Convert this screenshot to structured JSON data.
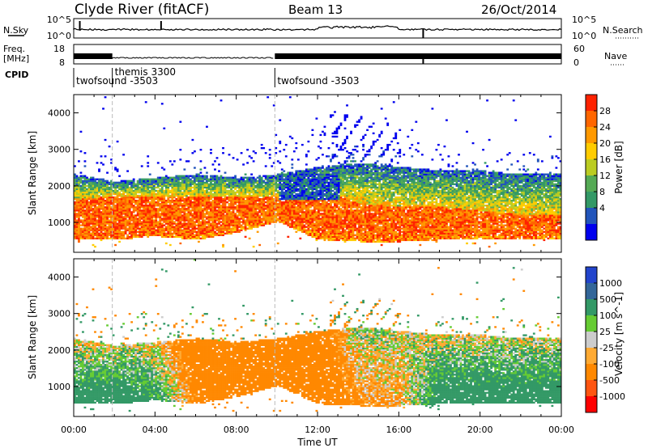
{
  "header": {
    "station": "Clyde River (fitACF)",
    "beam": "Beam 13",
    "date": "26/Oct/2014"
  },
  "status_panels": {
    "nsky_label": "N.Sky",
    "nsky_ticks": [
      "10^5",
      "10^0"
    ],
    "nsearch_label": "N.Search",
    "nsearch_ticks": [
      "10^5",
      "10^0"
    ],
    "freq_label_line1": "Freq.",
    "freq_label_line2": "[MHz]",
    "freq_ticks": [
      "18",
      "8"
    ],
    "nave_label": "Nave",
    "nave_ticks": [
      "60",
      "0"
    ],
    "cpid_label": "CPID",
    "cpid_segments": [
      {
        "name": "twofsound -3503",
        "start_h": 0.0,
        "end_h": 1.9
      },
      {
        "name": "themis 3300",
        "start_h": 1.9,
        "end_h": 9.9
      },
      {
        "name": "twofsound -3503",
        "start_h": 9.9,
        "end_h": 24.0
      }
    ]
  },
  "colors": {
    "power_scale": [
      "#0000ee",
      "#2255bb",
      "#339966",
      "#55aa55",
      "#bbcc22",
      "#ffcc00",
      "#ff9900",
      "#ff6600",
      "#ff2200"
    ],
    "velocity_scale": [
      "#2244cc",
      "#336699",
      "#339966",
      "#66cc33",
      "#cccccc",
      "#ffaa33",
      "#ff8800",
      "#ff5511",
      "#ff0000"
    ]
  },
  "chart_data": [
    {
      "type": "heatmap",
      "panel": "power",
      "ylabel": "Slant Range [km]",
      "ylim": [
        180,
        4500
      ],
      "yticks": [
        "1000",
        "2000",
        "3000",
        "4000"
      ],
      "xlim": [
        0,
        24
      ],
      "xticks": [
        "00:00",
        "04:00",
        "08:00",
        "12:00",
        "16:00",
        "20:00",
        "00:00"
      ],
      "colorbar_label": "Power [dB]",
      "colorbar_ticks": [
        "28",
        "24",
        "20",
        "16",
        "12",
        "8",
        "4"
      ],
      "colorbar_range": [
        0,
        30
      ],
      "profile": [
        {
          "t": 0,
          "low": 500,
          "high": 2300,
          "core_lo": 600,
          "core_hi": 1600,
          "top": 3000
        },
        {
          "t": 2,
          "low": 500,
          "high": 2100,
          "core_lo": 550,
          "core_hi": 1700,
          "top": 2800
        },
        {
          "t": 4,
          "low": 600,
          "high": 2200,
          "core_lo": 650,
          "core_hi": 1700,
          "top": 2800
        },
        {
          "t": 6,
          "low": 500,
          "high": 2300,
          "core_lo": 600,
          "core_hi": 1700,
          "top": 3100
        },
        {
          "t": 8,
          "low": 700,
          "high": 2200,
          "core_lo": 900,
          "core_hi": 1700,
          "top": 3000
        },
        {
          "t": 10,
          "low": 1000,
          "high": 2300,
          "core_lo": 1100,
          "core_hi": 1700,
          "top": 3200
        },
        {
          "t": 12,
          "low": 500,
          "high": 2500,
          "core_lo": 700,
          "core_hi": 1900,
          "top": 3700
        },
        {
          "t": 14,
          "low": 450,
          "high": 2600,
          "core_lo": 600,
          "core_hi": 1500,
          "top": 3500
        },
        {
          "t": 16,
          "low": 450,
          "high": 2500,
          "core_lo": 600,
          "core_hi": 1400,
          "top": 3300
        },
        {
          "t": 18,
          "low": 500,
          "high": 2400,
          "core_lo": 600,
          "core_hi": 1400,
          "top": 3100
        },
        {
          "t": 20,
          "low": 500,
          "high": 2400,
          "core_lo": 600,
          "core_hi": 1300,
          "top": 3000
        },
        {
          "t": 22,
          "low": 500,
          "high": 2300,
          "core_lo": 600,
          "core_hi": 1200,
          "top": 2900
        },
        {
          "t": 24,
          "low": 500,
          "high": 2300,
          "core_lo": 600,
          "core_hi": 1200,
          "top": 2900
        }
      ]
    },
    {
      "type": "heatmap",
      "panel": "velocity",
      "ylabel": "Slant Range [km]",
      "ylim": [
        180,
        4500
      ],
      "yticks": [
        "1000",
        "2000",
        "3000",
        "4000"
      ],
      "xlim": [
        0,
        24
      ],
      "xticks": [
        "00:00",
        "04:00",
        "08:00",
        "12:00",
        "16:00",
        "20:00",
        "00:00"
      ],
      "xlabel": "Time UT",
      "colorbar_label": "Velocity [m s^-1]",
      "colorbar_ticks": [
        "1000",
        "500",
        "100",
        "25",
        "-25",
        "-100",
        "-500",
        "-1000"
      ],
      "colorbar_range": [
        -1200,
        1200
      ],
      "profile": [
        {
          "t": 0,
          "low": 500,
          "high": 2300,
          "v_lo": 300,
          "v_hi": -50
        },
        {
          "t": 2,
          "low": 500,
          "high": 2100,
          "v_lo": 300,
          "v_hi": 0
        },
        {
          "t": 4,
          "low": 600,
          "high": 2200,
          "v_lo": 200,
          "v_hi": -50
        },
        {
          "t": 6,
          "low": 500,
          "high": 2300,
          "v_lo": -200,
          "v_hi": -300
        },
        {
          "t": 8,
          "low": 700,
          "high": 2200,
          "v_lo": -300,
          "v_hi": -200
        },
        {
          "t": 10,
          "low": 1000,
          "high": 2300,
          "v_lo": -300,
          "v_hi": -250
        },
        {
          "t": 12,
          "low": 500,
          "high": 2500,
          "v_lo": -400,
          "v_hi": -300
        },
        {
          "t": 14,
          "low": 450,
          "high": 2600,
          "v_lo": -150,
          "v_hi": 50
        },
        {
          "t": 16,
          "low": 450,
          "high": 2500,
          "v_lo": -100,
          "v_hi": 0
        },
        {
          "t": 18,
          "low": 500,
          "high": 2400,
          "v_lo": 300,
          "v_hi": -20
        },
        {
          "t": 20,
          "low": 500,
          "high": 2400,
          "v_lo": 300,
          "v_hi": -10
        },
        {
          "t": 22,
          "low": 500,
          "high": 2300,
          "v_lo": 300,
          "v_hi": 0
        },
        {
          "t": 24,
          "low": 500,
          "high": 2300,
          "v_lo": 300,
          "v_hi": 0
        }
      ]
    }
  ]
}
